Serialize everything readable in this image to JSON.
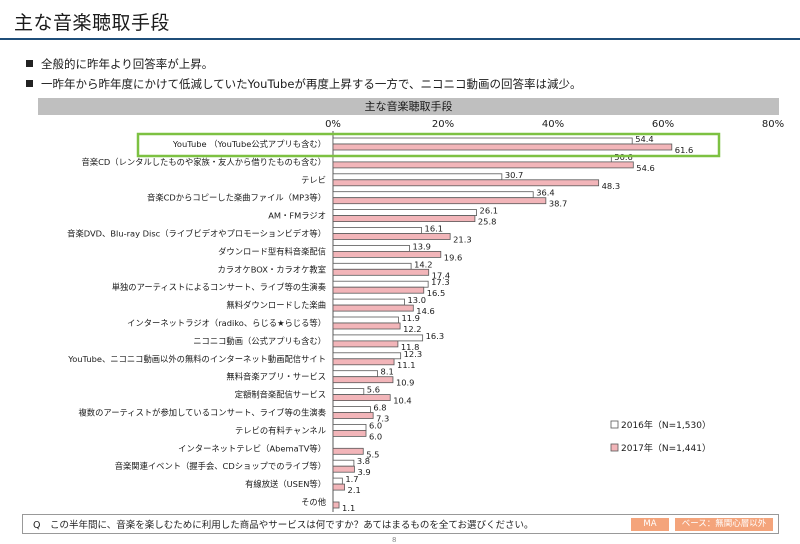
{
  "slide": {
    "title": "主な音楽聴取手段",
    "bullets": [
      "全般的に昨年より回答率が上昇。",
      "一昨年から昨年度にかけて低減していたYouTubeが再度上昇する一方で、ニコニコ動画の回答率は減少。"
    ],
    "page_number": "8"
  },
  "footer": {
    "question": "Q　この半年間に、音楽を楽しむために利用した商品やサービスは何ですか？あてはまるものを全てお選びください。",
    "tag_ma": "MA",
    "tag_base": "ベース：無関心層以外"
  },
  "colors": {
    "bar_2016": "#ffffff",
    "bar_2016_border": "#595959",
    "bar_2017": "#f2b5b9",
    "bar_2017_border": "#595959",
    "highlight_box": "#7dc142",
    "header_bg": "#bfbfbf",
    "title_rule": "#1f4e79",
    "tag": "#f4a47b"
  },
  "chart_data": {
    "type": "bar",
    "orientation": "horizontal",
    "title": "主な音楽聴取手段",
    "xlim": [
      0,
      80
    ],
    "x_ticks": [
      "0%",
      "20%",
      "40%",
      "60%",
      "80%"
    ],
    "grid": false,
    "legend_position": "bottom-right",
    "highlighted_category": "YouTube （YouTube公式アプリも含む）",
    "categories": [
      "YouTube （YouTube公式アプリも含む）",
      "音楽CD（レンタルしたものや家族・友人から借りたものも含む）",
      "テレビ",
      "音楽CDからコピーした楽曲ファイル（MP3等）",
      "AM・FMラジオ",
      "音楽DVD、Blu-ray Disc（ライブビデオやプロモーションビデオ等）",
      "ダウンロード型有料音楽配信",
      "カラオケBOX・カラオケ教室",
      "単独のアーティストによるコンサート、ライブ等の生演奏",
      "無料ダウンロードした楽曲",
      "インターネットラジオ（radiko、らじる★らじる等）",
      "ニコニコ動画（公式アプリも含む）",
      "YouTube、ニコニコ動画以外の無料のインターネット動画配信サイト",
      "無料音楽アプリ・サービス",
      "定額制音楽配信サービス",
      "複数のアーティストが参加しているコンサート、ライブ等の生演奏",
      "テレビの有料チャンネル",
      "インターネットテレビ（AbemaTV等）",
      "音楽関連イベント（握手会、CDショップでのライブ等）",
      "有線放送（USEN等）",
      "その他"
    ],
    "series": [
      {
        "name": "2016年（N=1,530）",
        "values": [
          54.4,
          50.6,
          30.7,
          36.4,
          26.1,
          16.1,
          13.9,
          14.2,
          17.3,
          13.0,
          11.9,
          16.3,
          12.3,
          8.1,
          5.6,
          6.8,
          6.0,
          null,
          3.8,
          1.7,
          null
        ],
        "labels": [
          "54.4",
          "50.6",
          "30.7",
          "36.4",
          "26.1",
          "16.1",
          "13.9",
          "14.2",
          "17.3",
          "13.0",
          "11.9",
          "16.3",
          "12.3",
          "8.1",
          "5.6",
          "6.8",
          "6.0",
          "",
          "3.8",
          "1.7",
          ""
        ]
      },
      {
        "name": "2017年（N=1,441）",
        "values": [
          61.6,
          54.6,
          48.3,
          38.7,
          25.8,
          21.3,
          19.6,
          17.4,
          16.5,
          14.6,
          12.2,
          11.8,
          11.1,
          10.9,
          10.4,
          7.3,
          6.0,
          5.5,
          3.9,
          2.1,
          1.1
        ],
        "labels": [
          "61.6",
          "54.6",
          "48.3",
          "38.7",
          "25.8",
          "21.3",
          "19.6",
          "17.4",
          "16.5",
          "14.6",
          "12.2",
          "11.8",
          "11.1",
          "10.9",
          "10.4",
          "7.3",
          "6.0",
          "5.5",
          "3.9",
          "2.1",
          "1.1"
        ]
      }
    ]
  }
}
